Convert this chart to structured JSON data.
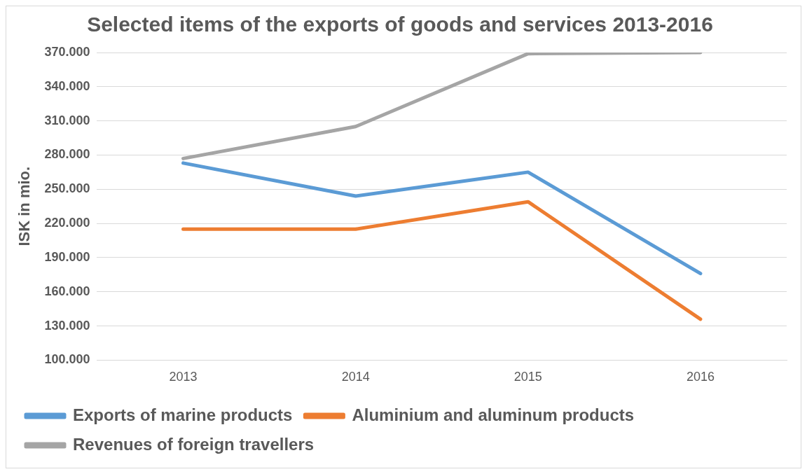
{
  "chart_data": {
    "type": "line",
    "title": "Selected items of the exports of goods and services 2013-2016",
    "ylabel": "ISK in mio.",
    "categories": [
      "2013",
      "2014",
      "2015",
      "2016"
    ],
    "series": [
      {
        "name": "Exports of marine products",
        "color": "#5b9bd5",
        "values": [
          273000,
          244000,
          265000,
          176000
        ]
      },
      {
        "name": "Aluminium and aluminum products",
        "color": "#ed7d31",
        "values": [
          215000,
          215000,
          239000,
          136000
        ]
      },
      {
        "name": "Revenues of foreign travellers",
        "color": "#a5a5a5",
        "values": [
          277000,
          305000,
          369000,
          370000
        ]
      }
    ],
    "ylim": [
      100000,
      370000
    ],
    "yticks": [
      {
        "value": 100000,
        "label": "100.000"
      },
      {
        "value": 130000,
        "label": "130.000"
      },
      {
        "value": 160000,
        "label": "160.000"
      },
      {
        "value": 190000,
        "label": "190.000"
      },
      {
        "value": 220000,
        "label": "220.000"
      },
      {
        "value": 250000,
        "label": "250.000"
      },
      {
        "value": 280000,
        "label": "280.000"
      },
      {
        "value": 310000,
        "label": "310.000"
      },
      {
        "value": 340000,
        "label": "340.000"
      },
      {
        "value": 370000,
        "label": "370.000"
      }
    ],
    "grid": "y",
    "legend": "bottom",
    "marker": "none",
    "line_style": "solid"
  }
}
